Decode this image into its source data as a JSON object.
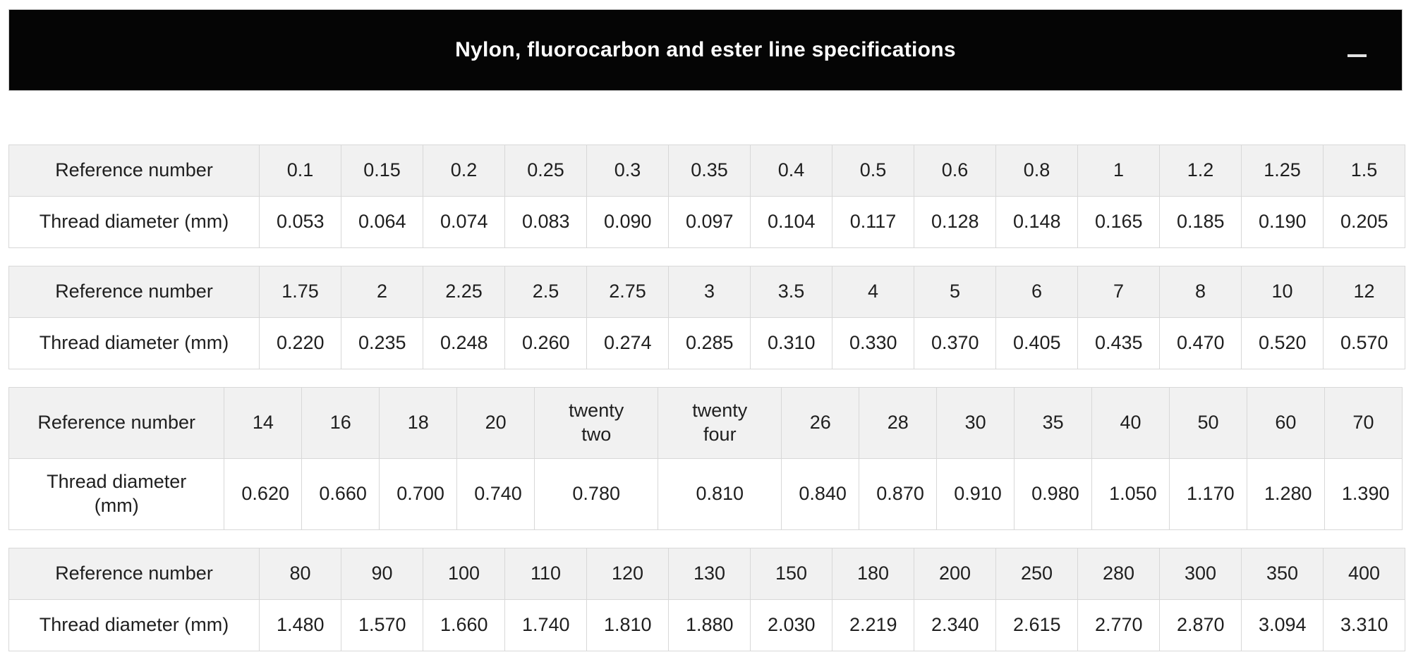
{
  "panel": {
    "title": "Nylon, fluorocarbon and ester line specifications",
    "collapse_icon": "minus-icon"
  },
  "tables": [
    {
      "ref_label": "Reference number",
      "dia_label": "Thread diameter (mm)",
      "refs": [
        "0.1",
        "0.15",
        "0.2",
        "0.25",
        "0.3",
        "0.35",
        "0.4",
        "0.5",
        "0.6",
        "0.8",
        "1",
        "1.2",
        "1.25",
        "1.5"
      ],
      "diameters": [
        "0.053",
        "0.064",
        "0.074",
        "0.083",
        "0.090",
        "0.097",
        "0.104",
        "0.117",
        "0.128",
        "0.148",
        "0.165",
        "0.185",
        "0.190",
        "0.205"
      ]
    },
    {
      "ref_label": "Reference number",
      "dia_label": "Thread diameter (mm)",
      "refs": [
        "1.75",
        "2",
        "2.25",
        "2.5",
        "2.75",
        "3",
        "3.5",
        "4",
        "5",
        "6",
        "7",
        "8",
        "10",
        "12"
      ],
      "diameters": [
        "0.220",
        "0.235",
        "0.248",
        "0.260",
        "0.274",
        "0.285",
        "0.310",
        "0.330",
        "0.370",
        "0.405",
        "0.435",
        "0.470",
        "0.520",
        "0.570"
      ]
    },
    {
      "ref_label": "Reference number",
      "dia_label": "Thread diameter (mm)",
      "refs": [
        "14",
        "16",
        "18",
        "20",
        "twenty two",
        "twenty four",
        "26",
        "28",
        "30",
        "35",
        "40",
        "50",
        "60",
        "70"
      ],
      "diameters": [
        "0.620",
        "0.660",
        "0.700",
        "0.740",
        "0.780",
        "0.810",
        "0.840",
        "0.870",
        "0.910",
        "0.980",
        "1.050",
        "1.170",
        "1.280",
        "1.390"
      ]
    },
    {
      "ref_label": "Reference number",
      "dia_label": "Thread diameter (mm)",
      "refs": [
        "80",
        "90",
        "100",
        "110",
        "120",
        "130",
        "150",
        "180",
        "200",
        "250",
        "280",
        "300",
        "350",
        "400"
      ],
      "diameters": [
        "1.480",
        "1.570",
        "1.660",
        "1.740",
        "1.810",
        "1.880",
        "2.030",
        "2.219",
        "2.340",
        "2.615",
        "2.770",
        "2.870",
        "3.094",
        "3.310"
      ]
    }
  ],
  "colors": {
    "panel_bg": "#050505",
    "panel_text": "#ffffff",
    "row_header_bg": "#f1f1f1",
    "cell_bg": "#ffffff",
    "border": "#d8d8d8",
    "text": "#1f1f1f"
  }
}
